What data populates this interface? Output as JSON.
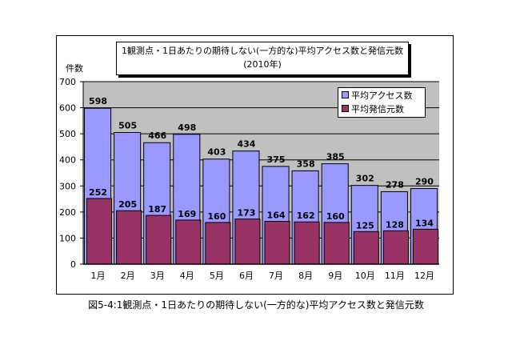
{
  "chart_data": {
    "type": "bar",
    "title": "1観測点・1日あたりの期待しない(一方的な)平均アクセス数と発信元数",
    "subtitle": "(2010年)",
    "ylabel": "件数",
    "xlabel": "",
    "ylim": [
      0,
      700
    ],
    "yticks": [
      0,
      100,
      200,
      300,
      400,
      500,
      600,
      700
    ],
    "grid": true,
    "legend": "top-right",
    "categories": [
      "1月",
      "2月",
      "3月",
      "4月",
      "5月",
      "6月",
      "7月",
      "8月",
      "9月",
      "10月",
      "11月",
      "12月"
    ],
    "series": [
      {
        "name": "平均アクセス数",
        "color": "#9999ff",
        "values": [
          598,
          505,
          466,
          498,
          403,
          434,
          375,
          358,
          385,
          302,
          278,
          290
        ]
      },
      {
        "name": "平均発信元数",
        "color": "#993366",
        "values": [
          252,
          205,
          187,
          169,
          160,
          173,
          164,
          162,
          160,
          125,
          128,
          134
        ]
      }
    ]
  },
  "caption": "図5-4:1観測点・1日あたりの期待しない(一方的な)平均アクセス数と発信元数"
}
